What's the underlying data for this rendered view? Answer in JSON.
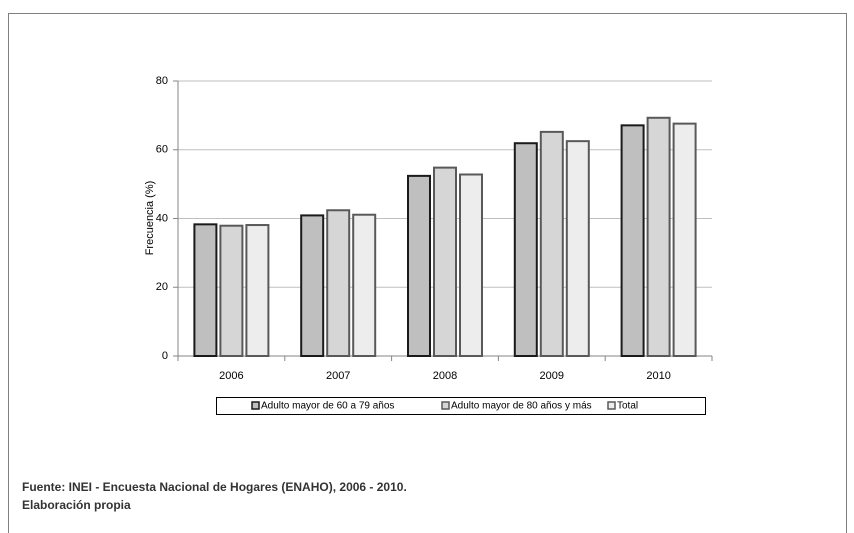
{
  "chart_data": {
    "type": "bar",
    "categories": [
      "2006",
      "2007",
      "2008",
      "2009",
      "2010"
    ],
    "series": [
      {
        "name": "Adulto mayor de 60 a 79 años",
        "color": "#bfbfbf",
        "edge": "#1a1a1a",
        "values": [
          38.3,
          40.9,
          52.4,
          61.9,
          67.1
        ]
      },
      {
        "name": "Adulto mayor de 80 años y más",
        "color": "#d6d6d6",
        "edge": "#595959",
        "values": [
          37.9,
          42.4,
          54.8,
          65.2,
          69.3
        ]
      },
      {
        "name": "Total",
        "color": "#ededed",
        "edge": "#595959",
        "values": [
          38.1,
          41.1,
          52.8,
          62.5,
          67.6
        ]
      }
    ],
    "ylabel": "Frecuencia (%)",
    "ylim": [
      0,
      80
    ],
    "yticks": [
      0,
      20,
      40,
      60,
      80
    ],
    "grid": true,
    "legend": "bottom",
    "notes": [
      "Fuente: INEI - Encuesta Nacional de Hogares (ENAHO), 2006 - 2010.",
      "Elaboración propia"
    ]
  }
}
